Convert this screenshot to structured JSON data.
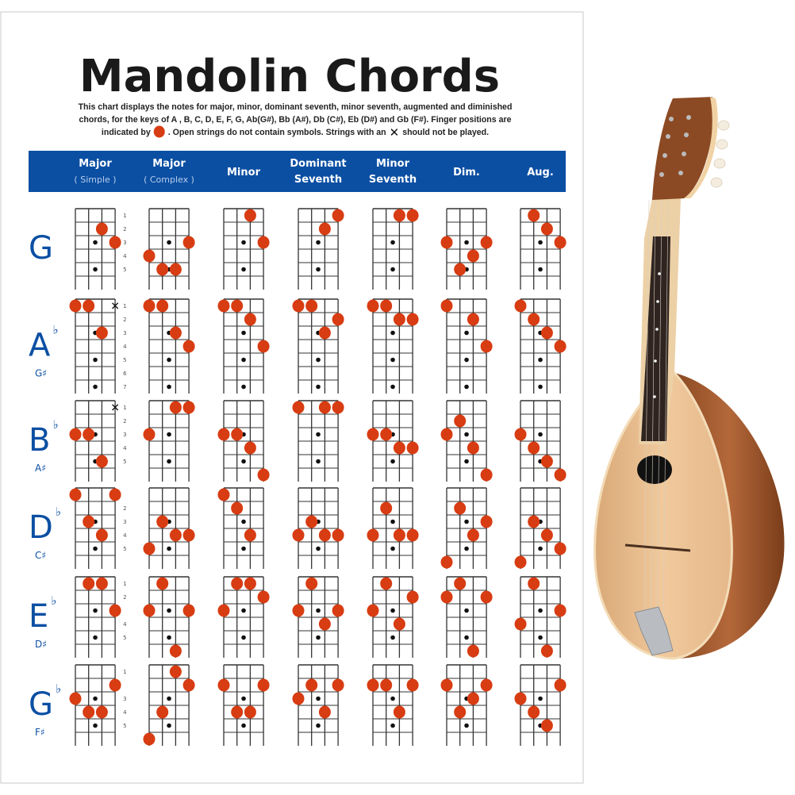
{
  "poster": {
    "title": "Mandolin Chords",
    "description": [
      "This chart displays the notes for major, minor, dominant seventh, minor seventh, augmented and diminished",
      "chords, for the keys of  A , B, C, D, E, F, G, Ab(G#), Bb (A#), Db (C#), Eb (D#) and Gb (F#). Finger positions are",
      "indicated by",
      ". Open strings do not contain symbols. Strings with an",
      "should not be played."
    ],
    "colors": {
      "header_band": "#0b4fa3",
      "finger_dot": "#d83c12",
      "key_text": "#0b4fa3"
    },
    "columns": [
      {
        "label": "Major",
        "sub": "( Simple )"
      },
      {
        "label": "Major",
        "sub": "( Complex )"
      },
      {
        "label": "Minor",
        "sub": ""
      },
      {
        "label": "Dominant",
        "sub": "Seventh"
      },
      {
        "label": "Minor",
        "sub": "Seventh"
      },
      {
        "label": "Dim.",
        "sub": ""
      },
      {
        "label": "Aug.",
        "sub": ""
      }
    ],
    "rows": [
      {
        "key": "G",
        "flat": "",
        "alt": "",
        "frets": 6,
        "fret_labels": [
          "1",
          "2",
          "3",
          "4",
          "5"
        ],
        "inlays": [
          3,
          5
        ],
        "chords": [
          {
            "dots": [
              [
                3,
                2
              ],
              [
                4,
                3
              ]
            ],
            "muted": []
          },
          {
            "dots": [
              [
                4,
                3
              ],
              [
                1,
                4
              ],
              [
                2,
                5
              ],
              [
                3,
                5
              ]
            ],
            "muted": []
          },
          {
            "dots": [
              [
                3,
                1
              ],
              [
                4,
                3
              ]
            ],
            "muted": []
          },
          {
            "dots": [
              [
                4,
                1
              ],
              [
                3,
                2
              ]
            ],
            "muted": []
          },
          {
            "dots": [
              [
                3,
                1
              ],
              [
                4,
                1
              ]
            ],
            "muted": []
          },
          {
            "dots": [
              [
                1,
                3
              ],
              [
                4,
                3
              ],
              [
                3,
                4
              ],
              [
                2,
                5
              ]
            ],
            "muted": []
          },
          {
            "dots": [
              [
                2,
                1
              ],
              [
                3,
                2
              ],
              [
                4,
                3
              ]
            ],
            "muted": []
          }
        ]
      },
      {
        "key": "A",
        "flat": "♭",
        "alt": "G♯",
        "frets": 7,
        "fret_labels": [
          "1",
          "2",
          "3",
          "4",
          "5",
          "6",
          "7"
        ],
        "inlays": [
          3,
          5,
          7
        ],
        "chords": [
          {
            "dots": [
              [
                1,
                1
              ],
              [
                2,
                1
              ],
              [
                3,
                3
              ]
            ],
            "muted": [
              4
            ]
          },
          {
            "dots": [
              [
                1,
                1
              ],
              [
                2,
                1
              ],
              [
                3,
                3
              ],
              [
                4,
                4
              ]
            ],
            "muted": []
          },
          {
            "dots": [
              [
                1,
                1
              ],
              [
                2,
                1
              ],
              [
                3,
                2
              ],
              [
                4,
                4
              ]
            ],
            "muted": []
          },
          {
            "dots": [
              [
                1,
                1
              ],
              [
                2,
                1
              ],
              [
                4,
                2
              ],
              [
                3,
                3
              ]
            ],
            "muted": []
          },
          {
            "dots": [
              [
                1,
                1
              ],
              [
                2,
                1
              ],
              [
                3,
                2
              ],
              [
                4,
                2
              ]
            ],
            "muted": []
          },
          {
            "dots": [
              [
                1,
                1
              ],
              [
                3,
                2
              ],
              [
                4,
                4
              ]
            ],
            "muted": []
          },
          {
            "dots": [
              [
                1,
                1
              ],
              [
                2,
                2
              ],
              [
                3,
                3
              ],
              [
                4,
                4
              ]
            ],
            "muted": []
          }
        ]
      },
      {
        "key": "B",
        "flat": "♭",
        "alt": "A♯",
        "frets": 6,
        "fret_labels": [
          "1",
          "2",
          "3",
          "4",
          "5"
        ],
        "inlays": [
          3,
          5
        ],
        "chords": [
          {
            "dots": [
              [
                1,
                3
              ],
              [
                2,
                3
              ],
              [
                3,
                5
              ]
            ],
            "muted": [
              4
            ]
          },
          {
            "dots": [
              [
                3,
                1
              ],
              [
                4,
                1
              ],
              [
                1,
                3
              ]
            ],
            "muted": []
          },
          {
            "dots": [
              [
                1,
                3
              ],
              [
                2,
                3
              ],
              [
                3,
                4
              ],
              [
                4,
                6
              ]
            ],
            "muted": []
          },
          {
            "dots": [
              [
                1,
                1
              ],
              [
                3,
                1
              ],
              [
                4,
                1
              ]
            ],
            "muted": []
          },
          {
            "dots": [
              [
                1,
                3
              ],
              [
                2,
                3
              ],
              [
                3,
                4
              ],
              [
                4,
                4
              ]
            ],
            "muted": []
          },
          {
            "dots": [
              [
                2,
                2
              ],
              [
                1,
                3
              ],
              [
                3,
                4
              ],
              [
                4,
                6
              ]
            ],
            "muted": []
          },
          {
            "dots": [
              [
                1,
                3
              ],
              [
                2,
                4
              ],
              [
                3,
                5
              ],
              [
                4,
                6
              ]
            ],
            "muted": []
          }
        ]
      },
      {
        "key": "D",
        "flat": "♭",
        "alt": "C♯",
        "frets": 6,
        "fret_labels": [
          "",
          "2",
          "3",
          "4",
          "5"
        ],
        "inlays": [
          3,
          5
        ],
        "chords": [
          {
            "dots": [
              [
                1,
                1
              ],
              [
                4,
                1
              ],
              [
                2,
                3
              ],
              [
                3,
                4
              ]
            ],
            "muted": []
          },
          {
            "dots": [
              [
                2,
                3
              ],
              [
                3,
                4
              ],
              [
                4,
                4
              ],
              [
                1,
                5
              ]
            ],
            "muted": []
          },
          {
            "dots": [
              [
                1,
                1
              ],
              [
                2,
                2
              ],
              [
                3,
                4
              ]
            ],
            "muted": []
          },
          {
            "dots": [
              [
                2,
                3
              ],
              [
                1,
                4
              ],
              [
                3,
                4
              ],
              [
                4,
                4
              ]
            ],
            "muted": []
          },
          {
            "dots": [
              [
                2,
                2
              ],
              [
                1,
                4
              ],
              [
                3,
                4
              ],
              [
                4,
                4
              ]
            ],
            "muted": []
          },
          {
            "dots": [
              [
                2,
                2
              ],
              [
                4,
                3
              ],
              [
                3,
                4
              ],
              [
                1,
                6
              ]
            ],
            "muted": []
          },
          {
            "dots": [
              [
                2,
                3
              ],
              [
                3,
                4
              ],
              [
                4,
                5
              ],
              [
                1,
                6
              ]
            ],
            "muted": []
          }
        ]
      },
      {
        "key": "E",
        "flat": "♭",
        "alt": "D♯",
        "frets": 6,
        "fret_labels": [
          "1",
          "2",
          "",
          "4",
          "5"
        ],
        "inlays": [
          3,
          5
        ],
        "chords": [
          {
            "dots": [
              [
                2,
                1
              ],
              [
                3,
                1
              ],
              [
                4,
                3
              ]
            ],
            "muted": []
          },
          {
            "dots": [
              [
                2,
                1
              ],
              [
                1,
                3
              ],
              [
                4,
                3
              ],
              [
                3,
                6
              ]
            ],
            "muted": []
          },
          {
            "dots": [
              [
                2,
                1
              ],
              [
                3,
                1
              ],
              [
                4,
                2
              ],
              [
                1,
                3
              ]
            ],
            "muted": []
          },
          {
            "dots": [
              [
                2,
                1
              ],
              [
                1,
                3
              ],
              [
                4,
                3
              ],
              [
                3,
                4
              ]
            ],
            "muted": []
          },
          {
            "dots": [
              [
                2,
                1
              ],
              [
                4,
                2
              ],
              [
                1,
                3
              ],
              [
                3,
                4
              ]
            ],
            "muted": []
          },
          {
            "dots": [
              [
                2,
                1
              ],
              [
                1,
                2
              ],
              [
                4,
                2
              ],
              [
                3,
                6
              ]
            ],
            "muted": []
          },
          {
            "dots": [
              [
                2,
                1
              ],
              [
                4,
                3
              ],
              [
                1,
                4
              ],
              [
                3,
                6
              ]
            ],
            "muted": []
          }
        ]
      },
      {
        "key": "G",
        "flat": "♭",
        "alt": "F♯",
        "frets": 6,
        "fret_labels": [
          "1",
          "",
          "3",
          "4",
          "5"
        ],
        "inlays": [
          3,
          5
        ],
        "chords": [
          {
            "dots": [
              [
                4,
                2
              ],
              [
                1,
                3
              ],
              [
                2,
                4
              ],
              [
                3,
                4
              ]
            ],
            "muted": []
          },
          {
            "dots": [
              [
                3,
                1
              ],
              [
                4,
                2
              ],
              [
                2,
                4
              ],
              [
                1,
                6
              ]
            ],
            "muted": []
          },
          {
            "dots": [
              [
                1,
                2
              ],
              [
                4,
                2
              ],
              [
                2,
                4
              ],
              [
                3,
                4
              ]
            ],
            "muted": []
          },
          {
            "dots": [
              [
                2,
                2
              ],
              [
                4,
                2
              ],
              [
                1,
                3
              ],
              [
                3,
                4
              ]
            ],
            "muted": []
          },
          {
            "dots": [
              [
                1,
                2
              ],
              [
                2,
                2
              ],
              [
                4,
                2
              ],
              [
                3,
                4
              ]
            ],
            "muted": []
          },
          {
            "dots": [
              [
                1,
                2
              ],
              [
                4,
                2
              ],
              [
                3,
                3
              ],
              [
                2,
                4
              ]
            ],
            "muted": []
          },
          {
            "dots": [
              [
                4,
                2
              ],
              [
                1,
                3
              ],
              [
                2,
                4
              ],
              [
                3,
                5
              ]
            ],
            "muted": []
          }
        ]
      }
    ]
  },
  "product_photo": {
    "subject": "mandolin-icon"
  }
}
